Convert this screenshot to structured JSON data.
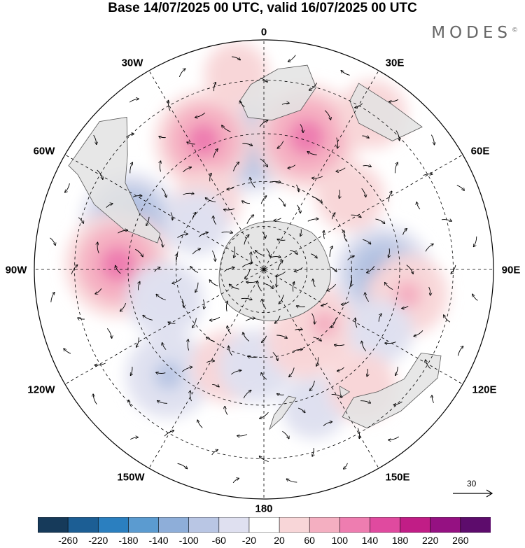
{
  "title": "Base 14/07/2025 00 UTC, valid 16/07/2025 00 UTC",
  "brand": "MODES",
  "brand_mark": "©",
  "longitude_labels": {
    "lon_0": "0",
    "lon_30e": "30E",
    "lon_60e": "60E",
    "lon_90e": "90E",
    "lon_120e": "120E",
    "lon_150e": "150E",
    "lon_180": "180",
    "lon_150w": "150W",
    "lon_120w": "120W",
    "lon_90w": "90W",
    "lon_60w": "60W",
    "lon_30w": "30W"
  },
  "reference_vector": {
    "value": "30"
  },
  "colorbar": {
    "tick_labels": [
      "-260",
      "-220",
      "-180",
      "-140",
      "-100",
      "-60",
      "-20",
      "20",
      "60",
      "100",
      "140",
      "180",
      "220",
      "260"
    ],
    "colors": [
      "#163a5a",
      "#1c5e94",
      "#2b7fbf",
      "#5b9bd0",
      "#8eaed9",
      "#b9c6e4",
      "#dfe0f0",
      "#ffffff",
      "#f8d6d8",
      "#f4afc1",
      "#ee7db0",
      "#e04a9f",
      "#c11d86",
      "#951182",
      "#5d0c6c"
    ]
  },
  "map": {
    "projection": "south-polar-stereographic",
    "anomaly_field": [
      {
        "lon": -7,
        "lat": -48,
        "value": -110
      },
      {
        "lon": -25,
        "lat": -43,
        "value": 110
      },
      {
        "lon": 18,
        "lat": -44,
        "value": 130
      },
      {
        "lon": -8,
        "lat": -28,
        "value": 30
      },
      {
        "lon": 35,
        "lat": -30,
        "value": 40
      },
      {
        "lon": -70,
        "lat": -43,
        "value": -110
      },
      {
        "lon": -88,
        "lat": -42,
        "value": 130
      },
      {
        "lon": -107,
        "lat": -55,
        "value": -60
      },
      {
        "lon": -138,
        "lat": -43,
        "value": -80
      },
      {
        "lon": -160,
        "lat": -55,
        "value": 50
      },
      {
        "lon": -175,
        "lat": -57,
        "value": -50
      },
      {
        "lon": 160,
        "lat": -42,
        "value": -30
      },
      {
        "lon": 150,
        "lat": -62,
        "value": 60
      },
      {
        "lon": 132,
        "lat": -62,
        "value": 60
      },
      {
        "lon": 92,
        "lat": -50,
        "value": -110
      },
      {
        "lon": 100,
        "lat": -42,
        "value": 70
      },
      {
        "lon": 118,
        "lat": -46,
        "value": -30
      },
      {
        "lon": 50,
        "lat": -52,
        "value": 40
      },
      {
        "lon": -40,
        "lat": -60,
        "value": 35
      },
      {
        "lon": -55,
        "lat": -62,
        "value": -30
      },
      {
        "lon": 140,
        "lat": -40,
        "value": 40
      }
    ],
    "land": [
      [
        [
          -8,
          -35
        ],
        [
          -4,
          -31
        ],
        [
          4,
          -27
        ],
        [
          12,
          -25
        ],
        [
          16,
          -30
        ],
        [
          13,
          -37
        ],
        [
          3,
          -41
        ],
        [
          -6,
          -40
        ]
      ],
      [
        [
          27,
          -25
        ],
        [
          38,
          -25
        ],
        [
          48,
          -24
        ],
        [
          45,
          -32
        ],
        [
          33,
          -34
        ],
        [
          27,
          -30
        ]
      ],
      [
        [
          -62,
          -22
        ],
        [
          -48,
          -22
        ],
        [
          -42,
          -26
        ],
        [
          -50,
          -33
        ],
        [
          -58,
          -37
        ],
        [
          -66,
          -45
        ],
        [
          -71,
          -53
        ],
        [
          -76,
          -53
        ],
        [
          -74,
          -42
        ],
        [
          -69,
          -32
        ],
        [
          -63,
          -25
        ]
      ],
      [
        [
          122,
          -26
        ],
        [
          136,
          -28
        ],
        [
          147,
          -30
        ],
        [
          152,
          -36
        ],
        [
          145,
          -39
        ],
        [
          137,
          -36
        ],
        [
          128,
          -33
        ],
        [
          118,
          -33
        ],
        [
          116,
          -28
        ]
      ],
      [
        [
          145,
          -41
        ],
        [
          149,
          -41
        ],
        [
          147,
          -44
        ]
      ],
      [
        [
          166,
          -46
        ],
        [
          173,
          -41
        ],
        [
          178,
          -38
        ],
        [
          176,
          -42
        ],
        [
          169,
          -47
        ]
      ]
    ],
    "vector_grid": {
      "spacing_deg_lon": 15,
      "spacing_deg_lat": 6,
      "note_units": "wind vectors"
    }
  }
}
